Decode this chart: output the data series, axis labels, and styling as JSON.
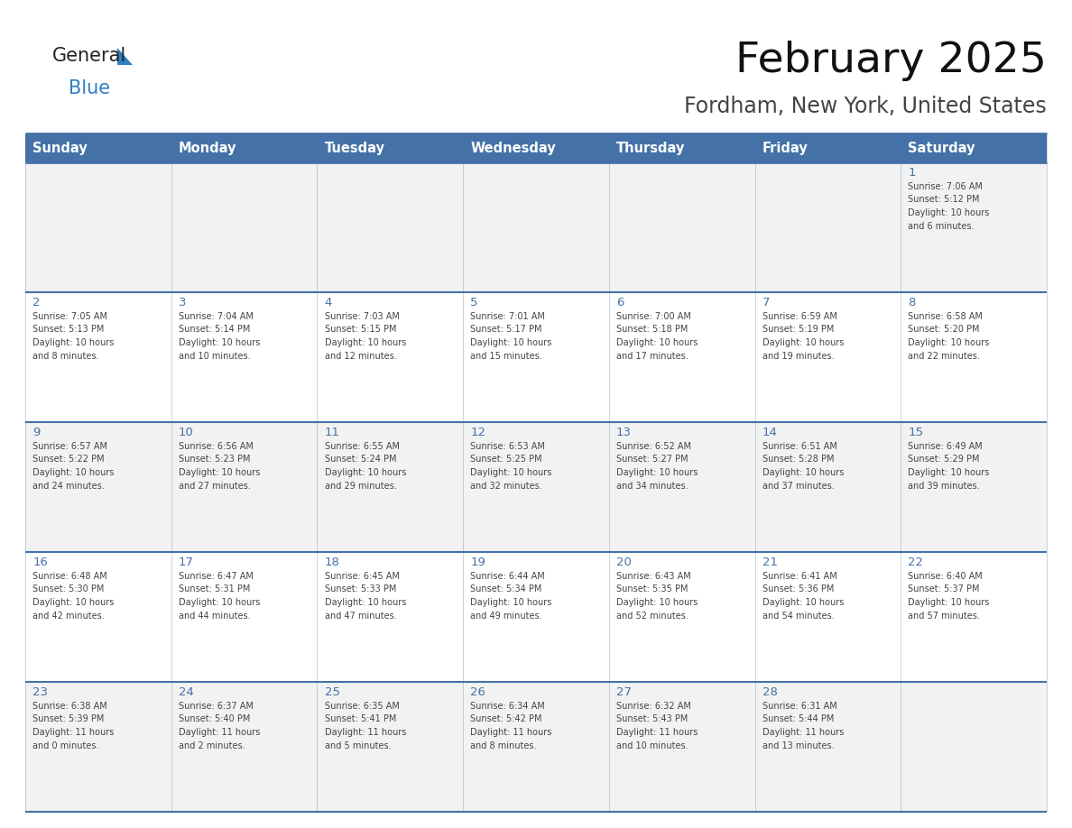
{
  "title": "February 2025",
  "subtitle": "Fordham, New York, United States",
  "header_bg_color": "#4472A8",
  "header_text_color": "#FFFFFF",
  "header_font_size": 10.5,
  "day_names": [
    "Sunday",
    "Monday",
    "Tuesday",
    "Wednesday",
    "Thursday",
    "Friday",
    "Saturday"
  ],
  "title_font_size": 34,
  "subtitle_font_size": 17,
  "cell_bg_color_odd": "#F2F2F2",
  "cell_bg_color_even": "#FFFFFF",
  "border_color": "#4472A8",
  "text_color": "#444444",
  "num_color": "#4472A8",
  "logo_general_color": "#222222",
  "logo_blue_color": "#2E7EC4",
  "days": [
    {
      "day": 1,
      "col": 6,
      "row": 0,
      "sunrise": "7:06 AM",
      "sunset": "5:12 PM",
      "daylight": "10 hours and 6 minutes."
    },
    {
      "day": 2,
      "col": 0,
      "row": 1,
      "sunrise": "7:05 AM",
      "sunset": "5:13 PM",
      "daylight": "10 hours and 8 minutes."
    },
    {
      "day": 3,
      "col": 1,
      "row": 1,
      "sunrise": "7:04 AM",
      "sunset": "5:14 PM",
      "daylight": "10 hours and 10 minutes."
    },
    {
      "day": 4,
      "col": 2,
      "row": 1,
      "sunrise": "7:03 AM",
      "sunset": "5:15 PM",
      "daylight": "10 hours and 12 minutes."
    },
    {
      "day": 5,
      "col": 3,
      "row": 1,
      "sunrise": "7:01 AM",
      "sunset": "5:17 PM",
      "daylight": "10 hours and 15 minutes."
    },
    {
      "day": 6,
      "col": 4,
      "row": 1,
      "sunrise": "7:00 AM",
      "sunset": "5:18 PM",
      "daylight": "10 hours and 17 minutes."
    },
    {
      "day": 7,
      "col": 5,
      "row": 1,
      "sunrise": "6:59 AM",
      "sunset": "5:19 PM",
      "daylight": "10 hours and 19 minutes."
    },
    {
      "day": 8,
      "col": 6,
      "row": 1,
      "sunrise": "6:58 AM",
      "sunset": "5:20 PM",
      "daylight": "10 hours and 22 minutes."
    },
    {
      "day": 9,
      "col": 0,
      "row": 2,
      "sunrise": "6:57 AM",
      "sunset": "5:22 PM",
      "daylight": "10 hours and 24 minutes."
    },
    {
      "day": 10,
      "col": 1,
      "row": 2,
      "sunrise": "6:56 AM",
      "sunset": "5:23 PM",
      "daylight": "10 hours and 27 minutes."
    },
    {
      "day": 11,
      "col": 2,
      "row": 2,
      "sunrise": "6:55 AM",
      "sunset": "5:24 PM",
      "daylight": "10 hours and 29 minutes."
    },
    {
      "day": 12,
      "col": 3,
      "row": 2,
      "sunrise": "6:53 AM",
      "sunset": "5:25 PM",
      "daylight": "10 hours and 32 minutes."
    },
    {
      "day": 13,
      "col": 4,
      "row": 2,
      "sunrise": "6:52 AM",
      "sunset": "5:27 PM",
      "daylight": "10 hours and 34 minutes."
    },
    {
      "day": 14,
      "col": 5,
      "row": 2,
      "sunrise": "6:51 AM",
      "sunset": "5:28 PM",
      "daylight": "10 hours and 37 minutes."
    },
    {
      "day": 15,
      "col": 6,
      "row": 2,
      "sunrise": "6:49 AM",
      "sunset": "5:29 PM",
      "daylight": "10 hours and 39 minutes."
    },
    {
      "day": 16,
      "col": 0,
      "row": 3,
      "sunrise": "6:48 AM",
      "sunset": "5:30 PM",
      "daylight": "10 hours and 42 minutes."
    },
    {
      "day": 17,
      "col": 1,
      "row": 3,
      "sunrise": "6:47 AM",
      "sunset": "5:31 PM",
      "daylight": "10 hours and 44 minutes."
    },
    {
      "day": 18,
      "col": 2,
      "row": 3,
      "sunrise": "6:45 AM",
      "sunset": "5:33 PM",
      "daylight": "10 hours and 47 minutes."
    },
    {
      "day": 19,
      "col": 3,
      "row": 3,
      "sunrise": "6:44 AM",
      "sunset": "5:34 PM",
      "daylight": "10 hours and 49 minutes."
    },
    {
      "day": 20,
      "col": 4,
      "row": 3,
      "sunrise": "6:43 AM",
      "sunset": "5:35 PM",
      "daylight": "10 hours and 52 minutes."
    },
    {
      "day": 21,
      "col": 5,
      "row": 3,
      "sunrise": "6:41 AM",
      "sunset": "5:36 PM",
      "daylight": "10 hours and 54 minutes."
    },
    {
      "day": 22,
      "col": 6,
      "row": 3,
      "sunrise": "6:40 AM",
      "sunset": "5:37 PM",
      "daylight": "10 hours and 57 minutes."
    },
    {
      "day": 23,
      "col": 0,
      "row": 4,
      "sunrise": "6:38 AM",
      "sunset": "5:39 PM",
      "daylight": "11 hours and 0 minutes."
    },
    {
      "day": 24,
      "col": 1,
      "row": 4,
      "sunrise": "6:37 AM",
      "sunset": "5:40 PM",
      "daylight": "11 hours and 2 minutes."
    },
    {
      "day": 25,
      "col": 2,
      "row": 4,
      "sunrise": "6:35 AM",
      "sunset": "5:41 PM",
      "daylight": "11 hours and 5 minutes."
    },
    {
      "day": 26,
      "col": 3,
      "row": 4,
      "sunrise": "6:34 AM",
      "sunset": "5:42 PM",
      "daylight": "11 hours and 8 minutes."
    },
    {
      "day": 27,
      "col": 4,
      "row": 4,
      "sunrise": "6:32 AM",
      "sunset": "5:43 PM",
      "daylight": "11 hours and 10 minutes."
    },
    {
      "day": 28,
      "col": 5,
      "row": 4,
      "sunrise": "6:31 AM",
      "sunset": "5:44 PM",
      "daylight": "11 hours and 13 minutes."
    }
  ]
}
